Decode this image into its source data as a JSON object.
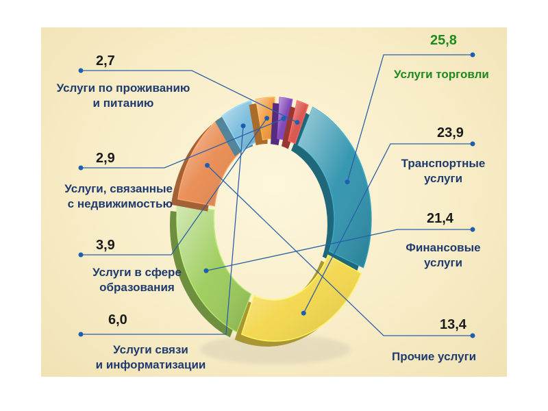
{
  "chart_data": {
    "type": "pie",
    "title": "",
    "unit": "",
    "categories": [
      "Услуги торговли",
      "Транспортные услуги",
      "Финансовые услуги",
      "Прочие услуги",
      "Услуги связи и информатизации",
      "Услуги в сфере образования",
      "Услуги, связанные с недвижимостью",
      "Услуги по проживанию и питанию"
    ],
    "values": [
      "25,8",
      "23,9",
      "21,4",
      "13,4",
      "6,0",
      "3,9",
      "2,9",
      "2,7"
    ],
    "numeric_values": [
      25.8,
      23.9,
      21.4,
      13.4,
      6.0,
      3.9,
      2.9,
      2.7
    ],
    "colors": [
      "#2e93ad",
      "#f3d64a",
      "#9ccc5a",
      "#e98a50",
      "#78bcdc",
      "#f39a3c",
      "#7b3fb5",
      "#d9504a"
    ],
    "legend": "none"
  },
  "labels": {
    "trade": {
      "line1": "Услуги торговли"
    },
    "transport": {
      "line1": "Транспортные",
      "line2": "услуги"
    },
    "finance": {
      "line1": "Финансовые",
      "line2": "услуги"
    },
    "other": {
      "line1": "Прочие услуги"
    },
    "communication": {
      "line1": "Услуги связи",
      "line2": "и информатизации"
    },
    "education": {
      "line1": "Услуги в сфере",
      "line2": "образования"
    },
    "realestate": {
      "line1": "Услуги, связанные",
      "line2": "с недвижимостью"
    },
    "hospitality": {
      "line1": "Услуги по проживанию",
      "line2": "и питанию"
    }
  }
}
